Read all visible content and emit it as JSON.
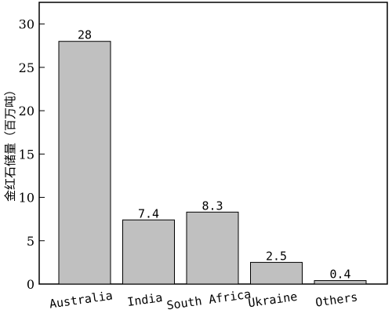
{
  "chart_data": {
    "type": "bar",
    "title": "",
    "xlabel": "",
    "ylabel": "金红石储量（百万吨）",
    "categories": [
      "Australia",
      "India",
      "South Africa",
      "Ukraine",
      "Others"
    ],
    "values": [
      28,
      7.4,
      8.3,
      2.5,
      0.4
    ],
    "data_labels": [
      "28",
      "7.4",
      "8.3",
      "2.5",
      "0.4"
    ],
    "ylim": [
      0,
      32.5
    ],
    "yticks": [
      0,
      5,
      10,
      15,
      20,
      25,
      30
    ],
    "grid": false,
    "bar_color": "#c0c0c0",
    "bar_edge_color": "#000000"
  }
}
